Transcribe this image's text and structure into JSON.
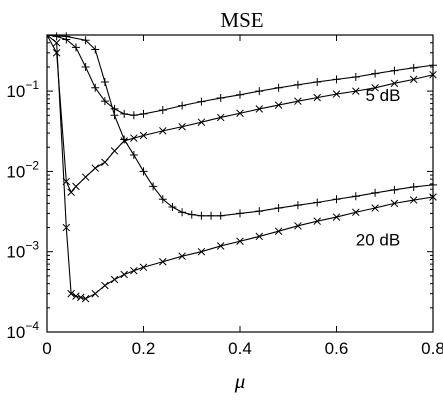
{
  "chart_data": {
    "type": "line",
    "title": "MSE",
    "xlabel": "μ",
    "ylabel": "",
    "xlim": [
      0,
      0.8
    ],
    "ylim": [
      0.0001,
      0.5
    ],
    "yscale": "log",
    "grid": false,
    "x_ticks": [
      {
        "value": 0,
        "label": "0"
      },
      {
        "value": 0.2,
        "label": "0.2"
      },
      {
        "value": 0.4,
        "label": "0.4"
      },
      {
        "value": 0.6,
        "label": "0.6"
      },
      {
        "value": 0.8,
        "label": "0.8"
      }
    ],
    "y_ticks": [
      {
        "value": 0.0001,
        "base": "10",
        "exp": "−4"
      },
      {
        "value": 0.001,
        "base": "10",
        "exp": "−3"
      },
      {
        "value": 0.01,
        "base": "10",
        "exp": "−2"
      },
      {
        "value": 0.1,
        "base": "10",
        "exp": "−1"
      }
    ],
    "annotations": [
      {
        "text": "5 dB",
        "x": 0.66,
        "y": 0.075
      },
      {
        "text": "20 dB",
        "x": 0.64,
        "y": 0.0012
      }
    ],
    "series": [
      {
        "marker": "+",
        "x": [
          0,
          0.02,
          0.04,
          0.06,
          0.08,
          0.1,
          0.12,
          0.14,
          0.16,
          0.18,
          0.2,
          0.24,
          0.28,
          0.32,
          0.36,
          0.4,
          0.44,
          0.48,
          0.52,
          0.56,
          0.6,
          0.64,
          0.68,
          0.72,
          0.76,
          0.8
        ],
        "y": [
          0.5,
          0.48,
          0.44,
          0.35,
          0.2,
          0.11,
          0.075,
          0.06,
          0.052,
          0.05,
          0.052,
          0.058,
          0.066,
          0.074,
          0.082,
          0.09,
          0.1,
          0.11,
          0.12,
          0.13,
          0.14,
          0.15,
          0.165,
          0.18,
          0.195,
          0.21
        ]
      },
      {
        "marker": "×",
        "x": [
          0,
          0.02,
          0.04,
          0.05,
          0.06,
          0.08,
          0.1,
          0.12,
          0.14,
          0.16,
          0.18,
          0.2,
          0.24,
          0.28,
          0.32,
          0.36,
          0.4,
          0.44,
          0.48,
          0.52,
          0.56,
          0.6,
          0.64,
          0.68,
          0.72,
          0.76,
          0.8
        ],
        "y": [
          0.5,
          0.3,
          0.0075,
          0.0055,
          0.0065,
          0.0085,
          0.011,
          0.013,
          0.018,
          0.024,
          0.026,
          0.028,
          0.032,
          0.036,
          0.041,
          0.047,
          0.053,
          0.06,
          0.067,
          0.075,
          0.083,
          0.092,
          0.1,
          0.11,
          0.125,
          0.14,
          0.16
        ]
      },
      {
        "marker": "+",
        "x": [
          0,
          0.04,
          0.08,
          0.1,
          0.12,
          0.14,
          0.16,
          0.18,
          0.2,
          0.22,
          0.24,
          0.26,
          0.28,
          0.3,
          0.32,
          0.34,
          0.36,
          0.4,
          0.44,
          0.48,
          0.52,
          0.56,
          0.6,
          0.64,
          0.68,
          0.72,
          0.76,
          0.8
        ],
        "y": [
          0.5,
          0.48,
          0.43,
          0.33,
          0.13,
          0.05,
          0.025,
          0.016,
          0.01,
          0.0065,
          0.0045,
          0.0036,
          0.0031,
          0.0029,
          0.0028,
          0.0028,
          0.0028,
          0.003,
          0.0032,
          0.0035,
          0.0038,
          0.0041,
          0.0045,
          0.0049,
          0.0054,
          0.0059,
          0.0064,
          0.0068
        ]
      },
      {
        "marker": "×",
        "x": [
          0,
          0.02,
          0.04,
          0.05,
          0.06,
          0.07,
          0.08,
          0.1,
          0.12,
          0.14,
          0.16,
          0.18,
          0.2,
          0.24,
          0.28,
          0.32,
          0.36,
          0.4,
          0.44,
          0.48,
          0.52,
          0.56,
          0.6,
          0.64,
          0.68,
          0.72,
          0.76,
          0.8
        ],
        "y": [
          0.5,
          0.4,
          0.002,
          0.0003,
          0.00028,
          0.00027,
          0.00026,
          0.0003,
          0.00038,
          0.00045,
          0.00052,
          0.00058,
          0.00064,
          0.00075,
          0.00088,
          0.001,
          0.00118,
          0.00135,
          0.00155,
          0.0018,
          0.0021,
          0.0024,
          0.0027,
          0.0031,
          0.0035,
          0.004,
          0.0044,
          0.0048
        ]
      }
    ]
  }
}
